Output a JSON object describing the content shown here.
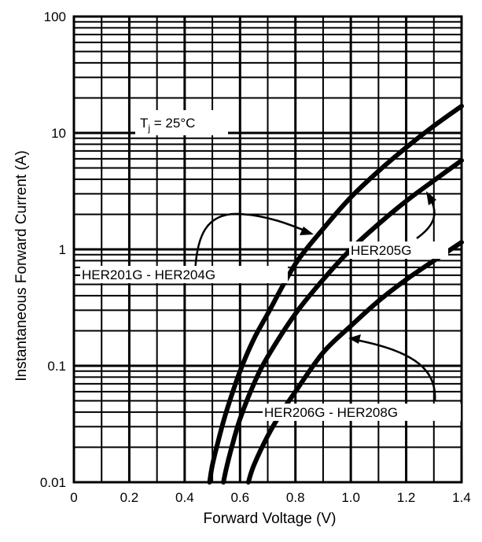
{
  "chart_data": {
    "type": "line",
    "y_scale": "log",
    "xlim": [
      0,
      1.4
    ],
    "ylim": [
      0.01,
      100
    ],
    "grid": true,
    "xlabel": "Forward Voltage (V)",
    "ylabel": "Instantaneous Forward Current (A)",
    "x_ticks": [
      "0",
      "0.2",
      "0.4",
      "0.6",
      "0.8",
      "1.0",
      "1.2",
      "1.4"
    ],
    "x_tick_values": [
      0,
      0.2,
      0.4,
      0.6,
      0.8,
      1.0,
      1.2,
      1.4
    ],
    "y_ticks": [
      "0.01",
      "0.1",
      "1",
      "10",
      "100"
    ],
    "y_tick_values": [
      0.01,
      0.1,
      1,
      10,
      100
    ],
    "condition": {
      "prefix": "T",
      "subscript": "j",
      "suffix": " = 25°C"
    },
    "series": [
      {
        "name": "HER201G - HER204G",
        "x": [
          0.49,
          0.5,
          0.52,
          0.55,
          0.6,
          0.65,
          0.7,
          0.8,
          0.9,
          1.0,
          1.1,
          1.2,
          1.3,
          1.4
        ],
        "y": [
          0.01,
          0.014,
          0.022,
          0.04,
          0.09,
          0.17,
          0.28,
          0.75,
          1.5,
          2.8,
          4.7,
          7.5,
          11.5,
          17
        ]
      },
      {
        "name": "HER205G",
        "x": [
          0.54,
          0.55,
          0.57,
          0.6,
          0.65,
          0.7,
          0.8,
          0.9,
          1.0,
          1.1,
          1.2,
          1.3,
          1.4
        ],
        "y": [
          0.01,
          0.013,
          0.02,
          0.035,
          0.07,
          0.12,
          0.28,
          0.55,
          1.0,
          1.65,
          2.6,
          3.9,
          5.8
        ]
      },
      {
        "name": "HER206G - HER208G",
        "x": [
          0.63,
          0.65,
          0.7,
          0.75,
          0.8,
          0.9,
          1.0,
          1.1,
          1.2,
          1.3,
          1.4
        ],
        "y": [
          0.01,
          0.014,
          0.025,
          0.04,
          0.06,
          0.13,
          0.22,
          0.36,
          0.55,
          0.8,
          1.15
        ]
      }
    ]
  }
}
